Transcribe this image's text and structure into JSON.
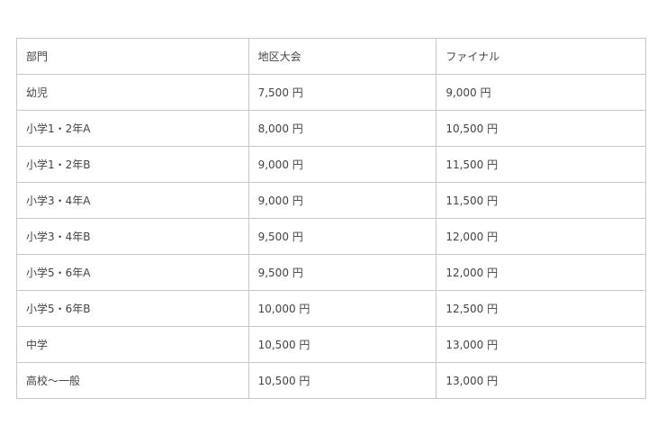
{
  "table": {
    "headers": [
      "部門",
      "地区大会",
      "ファイナル"
    ],
    "rows": [
      [
        "幼児",
        "7,500 円",
        "9,000 円"
      ],
      [
        "小学1・2年A",
        "8,000 円",
        "10,500 円"
      ],
      [
        "小学1・2年B",
        "9,000 円",
        "11,500 円"
      ],
      [
        "小学3・4年A",
        "9,000 円",
        "11,500 円"
      ],
      [
        "小学3・4年B",
        "9,500 円",
        "12,000 円"
      ],
      [
        "小学5・6年A",
        "9,500 円",
        "12,000 円"
      ],
      [
        "小学5・6年B",
        "10,000 円",
        "12,500 円"
      ],
      [
        "中学",
        "10,500 円",
        "13,000 円"
      ],
      [
        "高校～一般",
        "10,500 円",
        "13,000 円"
      ]
    ]
  }
}
